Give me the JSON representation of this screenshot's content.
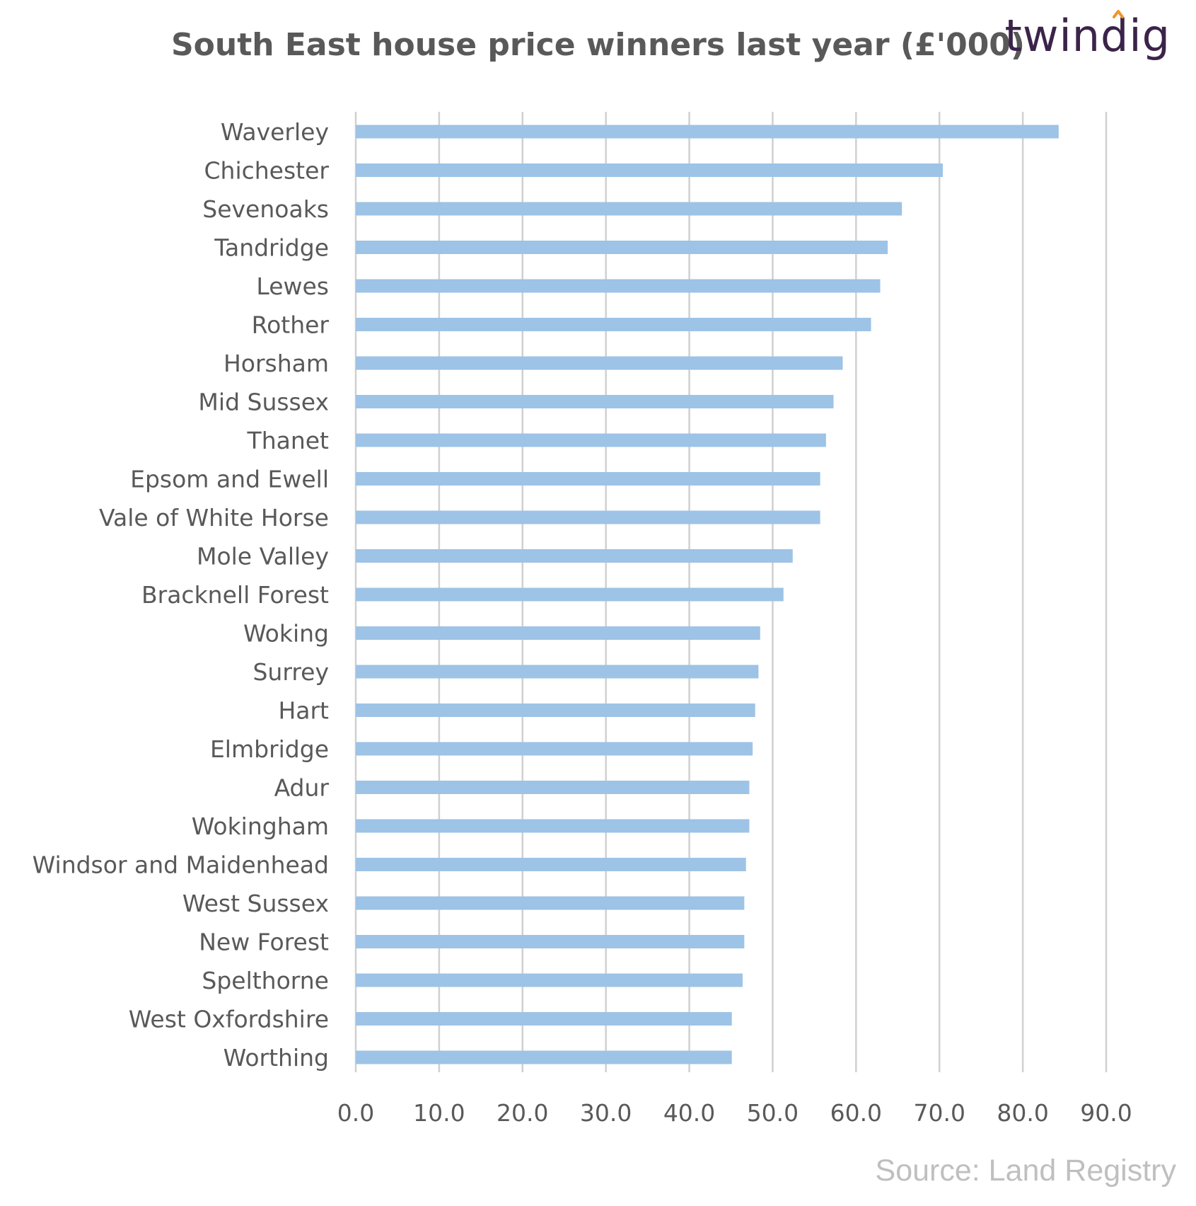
{
  "logo": {
    "text": "twindig",
    "accent_color": "#f0962d",
    "text_color": "#3b2349"
  },
  "source_note": "Source: Land Registry",
  "chart_data": {
    "type": "bar",
    "orientation": "horizontal",
    "title": "South East house price winners last year (£'000)",
    "xlabel": "",
    "ylabel": "",
    "categories": [
      "Waverley",
      "Chichester",
      "Sevenoaks",
      "Tandridge",
      "Lewes",
      "Rother",
      "Horsham",
      "Mid Sussex",
      "Thanet",
      "Epsom and Ewell",
      "Vale of White Horse",
      "Mole Valley",
      "Bracknell Forest",
      "Woking",
      "Surrey",
      "Hart",
      "Elmbridge",
      "Adur",
      "Wokingham",
      "Windsor and Maidenhead",
      "West Sussex",
      "New Forest",
      "Spelthorne",
      "West Oxfordshire",
      "Worthing"
    ],
    "values": [
      84.3,
      70.4,
      65.5,
      63.8,
      62.9,
      61.8,
      58.4,
      57.3,
      56.4,
      55.7,
      55.7,
      52.4,
      51.3,
      48.5,
      48.3,
      47.9,
      47.6,
      47.2,
      47.2,
      46.8,
      46.6,
      46.6,
      46.4,
      45.1,
      45.1
    ],
    "xlim": [
      0,
      90
    ],
    "xticks": [
      "0.0",
      "10.0",
      "20.0",
      "30.0",
      "40.0",
      "50.0",
      "60.0",
      "70.0",
      "80.0",
      "90.0"
    ],
    "bar_color": "#9dc3e6",
    "grid": true,
    "grid_color": "#d0d0d0",
    "legend": false
  }
}
